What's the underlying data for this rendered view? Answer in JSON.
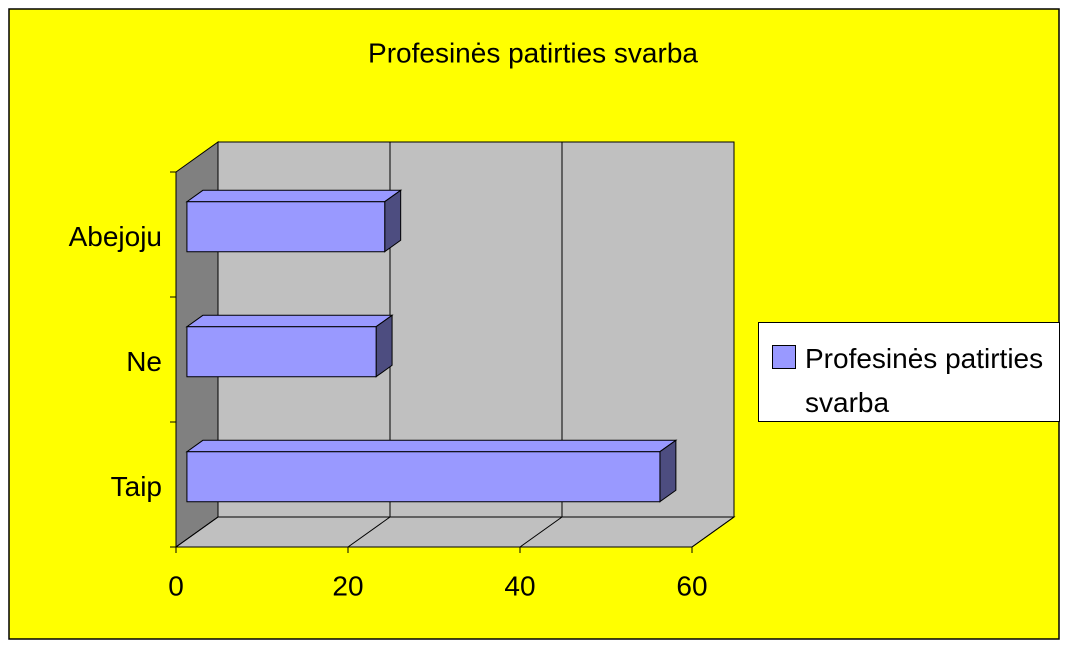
{
  "chart_data": {
    "type": "bar",
    "orientation": "horizontal",
    "title": "Profesinės patirties svarba",
    "categories": [
      "Taip",
      "Ne",
      "Abejoju"
    ],
    "series": [
      {
        "name": "Profesinės patirties svarba",
        "color": "#9999ff",
        "values": [
          55,
          22,
          23
        ]
      }
    ],
    "xlim": [
      0,
      60
    ],
    "xticks": [
      0,
      20,
      40,
      60
    ],
    "grid": true,
    "legend": "right"
  }
}
